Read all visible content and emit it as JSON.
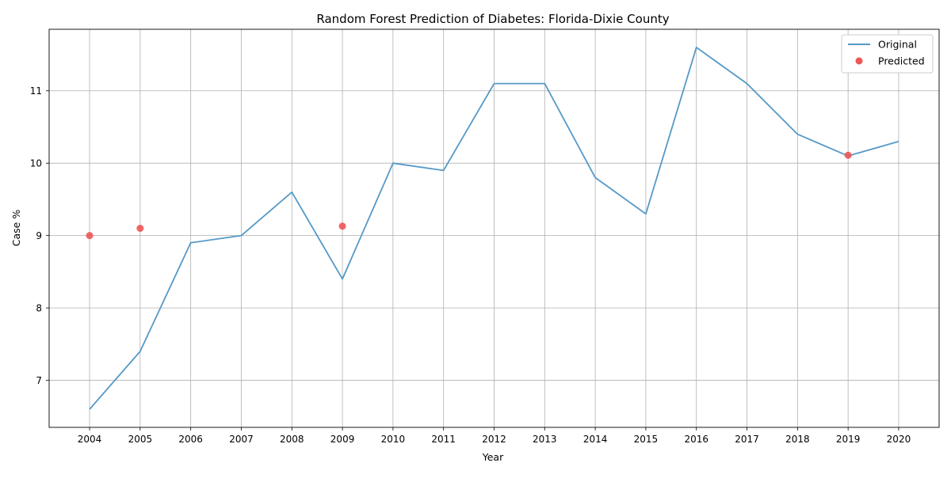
{
  "chart_data": {
    "type": "line",
    "title": "Random Forest Prediction of Diabetes: Florida-Dixie County",
    "xlabel": "Year",
    "ylabel": "Case %",
    "x": [
      2004,
      2005,
      2006,
      2007,
      2008,
      2009,
      2010,
      2011,
      2012,
      2013,
      2014,
      2015,
      2016,
      2017,
      2018,
      2019,
      2020
    ],
    "x_tick_labels": [
      "2004",
      "2005",
      "2006",
      "2007",
      "2008",
      "2009",
      "2010",
      "2011",
      "2012",
      "2013",
      "2014",
      "2015",
      "2016",
      "2017",
      "2018",
      "2019",
      "2020"
    ],
    "y_ticks": [
      7,
      8,
      9,
      10,
      11
    ],
    "y_tick_labels": [
      "7",
      "8",
      "9",
      "10",
      "11"
    ],
    "xlim": [
      2003.2,
      2020.8
    ],
    "ylim": [
      6.35,
      11.85
    ],
    "grid": true,
    "legend_position": "top-right",
    "series": [
      {
        "name": "Original",
        "kind": "line",
        "color": "#5599c7",
        "x": [
          2004,
          2005,
          2006,
          2007,
          2008,
          2009,
          2010,
          2011,
          2012,
          2013,
          2014,
          2015,
          2016,
          2017,
          2018,
          2019,
          2020
        ],
        "y": [
          6.6,
          7.4,
          8.9,
          9.0,
          9.6,
          8.4,
          10.0,
          9.9,
          11.1,
          11.1,
          9.8,
          9.3,
          11.6,
          11.1,
          10.4,
          10.1,
          10.3
        ]
      },
      {
        "name": "Predicted",
        "kind": "scatter",
        "color": "#ee5555",
        "x": [
          2004,
          2005,
          2009,
          2019
        ],
        "y": [
          9.0,
          9.1,
          9.13,
          10.11
        ]
      }
    ]
  }
}
